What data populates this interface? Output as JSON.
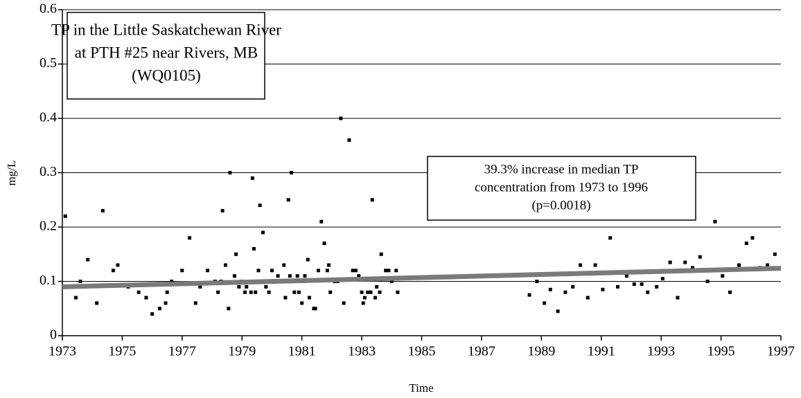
{
  "chart_data": {
    "type": "scatter",
    "title": [
      "TP in the Little Saskatchewan River",
      "at PTH #25 near Rivers, MB",
      "(WQ0105)"
    ],
    "annotation": [
      "39.3% increase in median TP",
      "concentration from 1973 to 1996",
      "(p=0.0018)"
    ],
    "xlabel": "Time",
    "ylabel": "mg/L",
    "color": "#000000",
    "x": [
      1973.1,
      1973.45,
      1973.6,
      1973.85,
      1974.15,
      1974.35,
      1974.7,
      1974.85,
      1975.2,
      1975.55,
      1975.8,
      1976.0,
      1976.25,
      1976.45,
      1976.5,
      1976.65,
      1977.0,
      1977.25,
      1977.45,
      1977.6,
      1977.85,
      1978.1,
      1978.2,
      1978.3,
      1978.35,
      1978.45,
      1978.55,
      1978.6,
      1978.75,
      1978.8,
      1978.9,
      1979.0,
      1979.1,
      1979.15,
      1979.25,
      1979.3,
      1979.35,
      1979.4,
      1979.45,
      1979.55,
      1979.6,
      1979.7,
      1979.8,
      1979.9,
      1980.0,
      1980.1,
      1980.2,
      1980.3,
      1980.4,
      1980.45,
      1980.55,
      1980.6,
      1980.65,
      1980.75,
      1980.85,
      1980.9,
      1981.0,
      1981.05,
      1981.1,
      1981.2,
      1981.25,
      1981.4,
      1981.45,
      1981.55,
      1981.65,
      1981.75,
      1981.85,
      1981.9,
      1981.95,
      1982.1,
      1982.2,
      1982.3,
      1982.4,
      1982.58,
      1982.7,
      1982.8,
      1982.9,
      1983.0,
      1983.05,
      1983.1,
      1983.2,
      1983.3,
      1983.35,
      1983.45,
      1983.5,
      1983.6,
      1983.65,
      1983.8,
      1983.9,
      1984.0,
      1984.15,
      1984.2,
      1988.6,
      1988.85,
      1989.1,
      1989.3,
      1989.55,
      1989.8,
      1990.05,
      1990.3,
      1990.55,
      1990.8,
      1991.05,
      1991.3,
      1991.55,
      1991.85,
      1992.1,
      1992.35,
      1992.55,
      1992.85,
      1993.05,
      1993.3,
      1993.55,
      1993.8,
      1994.05,
      1994.3,
      1994.55,
      1994.8,
      1995.05,
      1995.3,
      1995.6,
      1995.85,
      1996.05,
      1996.3,
      1996.55,
      1996.8
    ],
    "values": [
      0.22,
      0.07,
      0.1,
      0.14,
      0.06,
      0.23,
      0.12,
      0.13,
      0.09,
      0.08,
      0.07,
      0.04,
      0.05,
      0.06,
      0.08,
      0.1,
      0.12,
      0.18,
      0.06,
      0.09,
      0.12,
      0.1,
      0.08,
      0.1,
      0.23,
      0.13,
      0.05,
      0.3,
      0.11,
      0.15,
      0.09,
      0.1,
      0.08,
      0.09,
      0.1,
      0.08,
      0.29,
      0.16,
      0.08,
      0.12,
      0.24,
      0.19,
      0.09,
      0.08,
      0.12,
      0.1,
      0.11,
      0.1,
      0.13,
      0.07,
      0.25,
      0.11,
      0.3,
      0.08,
      0.11,
      0.08,
      0.06,
      0.1,
      0.11,
      0.14,
      0.07,
      0.05,
      0.05,
      0.12,
      0.21,
      0.17,
      0.12,
      0.13,
      0.08,
      0.1,
      0.1,
      0.4,
      0.06,
      0.36,
      0.12,
      0.12,
      0.11,
      0.08,
      0.06,
      0.07,
      0.08,
      0.08,
      0.25,
      0.07,
      0.09,
      0.08,
      0.15,
      0.12,
      0.12,
      0.1,
      0.12,
      0.08,
      0.075,
      0.1,
      0.06,
      0.085,
      0.045,
      0.08,
      0.09,
      0.13,
      0.07,
      0.13,
      0.085,
      0.18,
      0.09,
      0.11,
      0.095,
      0.095,
      0.08,
      0.09,
      0.105,
      0.135,
      0.07,
      0.135,
      0.125,
      0.145,
      0.1,
      0.21,
      0.11,
      0.08,
      0.13,
      0.17,
      0.18,
      0.125,
      0.13,
      0.15
    ],
    "trend": {
      "x": [
        1973,
        1997
      ],
      "values": [
        0.09,
        0.124
      ],
      "color": "#7a7a7a"
    },
    "xlim": [
      1973,
      1997
    ],
    "xticks": [
      1973,
      1975,
      1977,
      1979,
      1981,
      1983,
      1985,
      1987,
      1989,
      1991,
      1993,
      1995,
      1997
    ],
    "ylim": [
      0,
      0.6
    ],
    "yticks": [
      0,
      0.1,
      0.2,
      0.3,
      0.4,
      0.5,
      0.6
    ],
    "grid": true
  }
}
